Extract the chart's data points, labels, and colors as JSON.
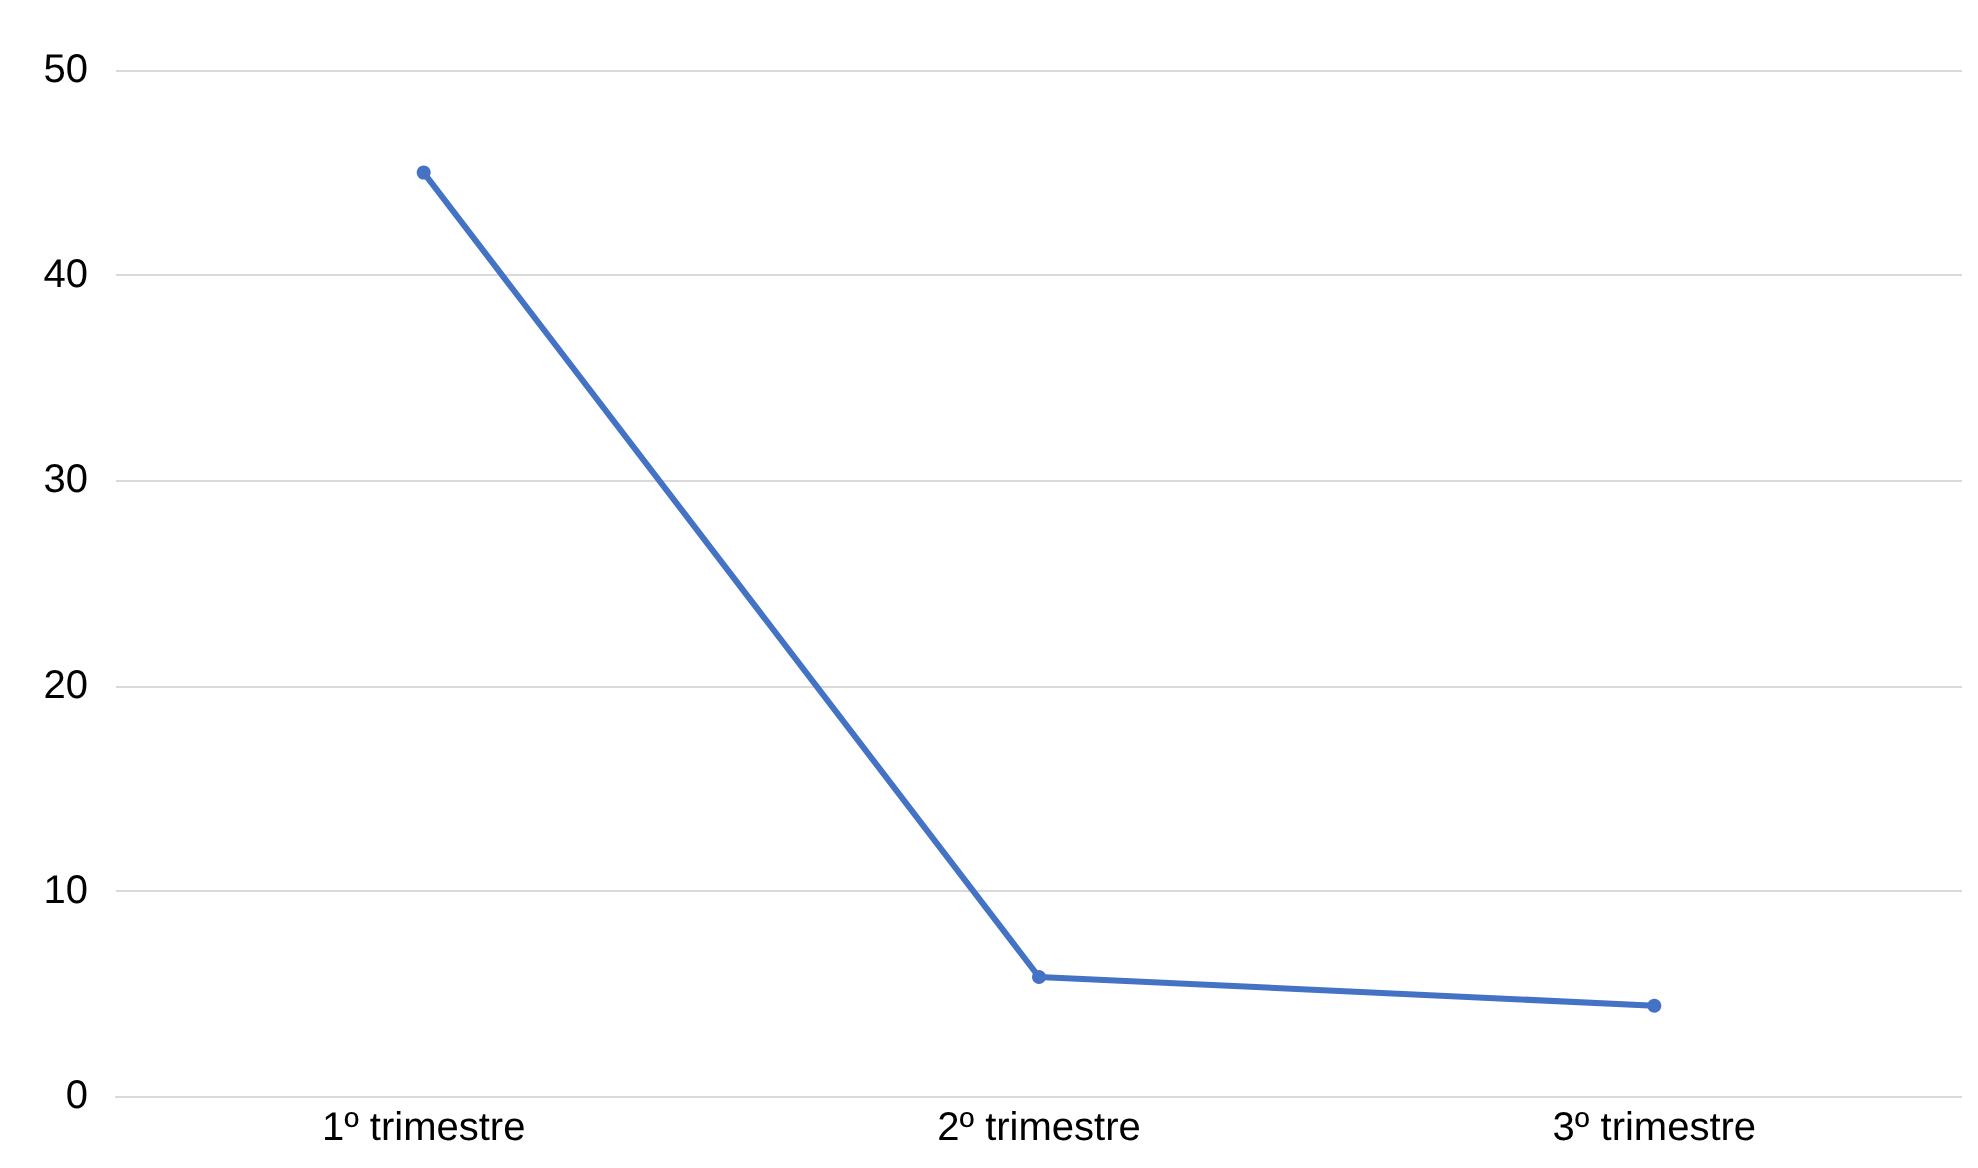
{
  "chart_data": {
    "type": "line",
    "categories": [
      "1º trimestre",
      "2º trimestre",
      "3º trimestre"
    ],
    "series": [
      {
        "color": "#4472c4",
        "values": [
          45,
          5.8,
          4.4
        ]
      }
    ],
    "ylim": [
      0,
      50
    ],
    "yticks": [
      0,
      10,
      20,
      30,
      40,
      50
    ],
    "grid": "y",
    "marker": "circle",
    "line_style": "solid"
  }
}
